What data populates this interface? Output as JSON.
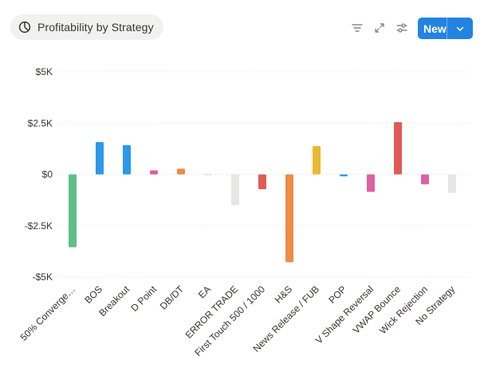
{
  "view_tab": {
    "label": "Profitability by Strategy",
    "icon": "pie-chart-icon"
  },
  "toolbar": {
    "filter_icon": "filter-icon",
    "expand_icon": "expand-icon",
    "settings_icon": "settings-sliders-icon",
    "new_label": "New",
    "new_caret_icon": "chevron-down-icon"
  },
  "colors": {
    "accent": "#2383e2",
    "grid": "#e9e9e7",
    "label": "#37352f"
  },
  "chart_data": {
    "type": "bar",
    "y_ticks": [
      {
        "value": 5000,
        "label": "$5K"
      },
      {
        "value": 2500,
        "label": "$2.5K"
      },
      {
        "value": 0,
        "label": "$0"
      },
      {
        "value": -2500,
        "label": "-$2.5K"
      },
      {
        "value": -5000,
        "label": "-$5K"
      }
    ],
    "ylim": [
      -5000,
      5000
    ],
    "grid": true,
    "categories": [
      "50% Converge…",
      "BOS",
      "Breakout",
      "D Point",
      "DB/DT",
      "EA",
      "ERROR TRADE",
      "First Touch 500 / 1000",
      "H&S",
      "News Release / FUB",
      "POP",
      "V Shape Reversal",
      "VWAP Bounce",
      "Wick Rejection",
      "No Strategy"
    ],
    "values": [
      -3550,
      1580,
      1430,
      200,
      280,
      20,
      -1500,
      -720,
      -4280,
      1380,
      -90,
      -850,
      2550,
      -480,
      -900
    ],
    "bar_colors": [
      "#5ebf8a",
      "#2e97ea",
      "#2e97ea",
      "#de5fa3",
      "#ec8c45",
      "#e6e6e4",
      "#e6e6e4",
      "#e05b58",
      "#ec8c45",
      "#eab832",
      "#2e97ea",
      "#de5fa3",
      "#e05b58",
      "#de5fa3",
      "#e6e6e4"
    ]
  }
}
